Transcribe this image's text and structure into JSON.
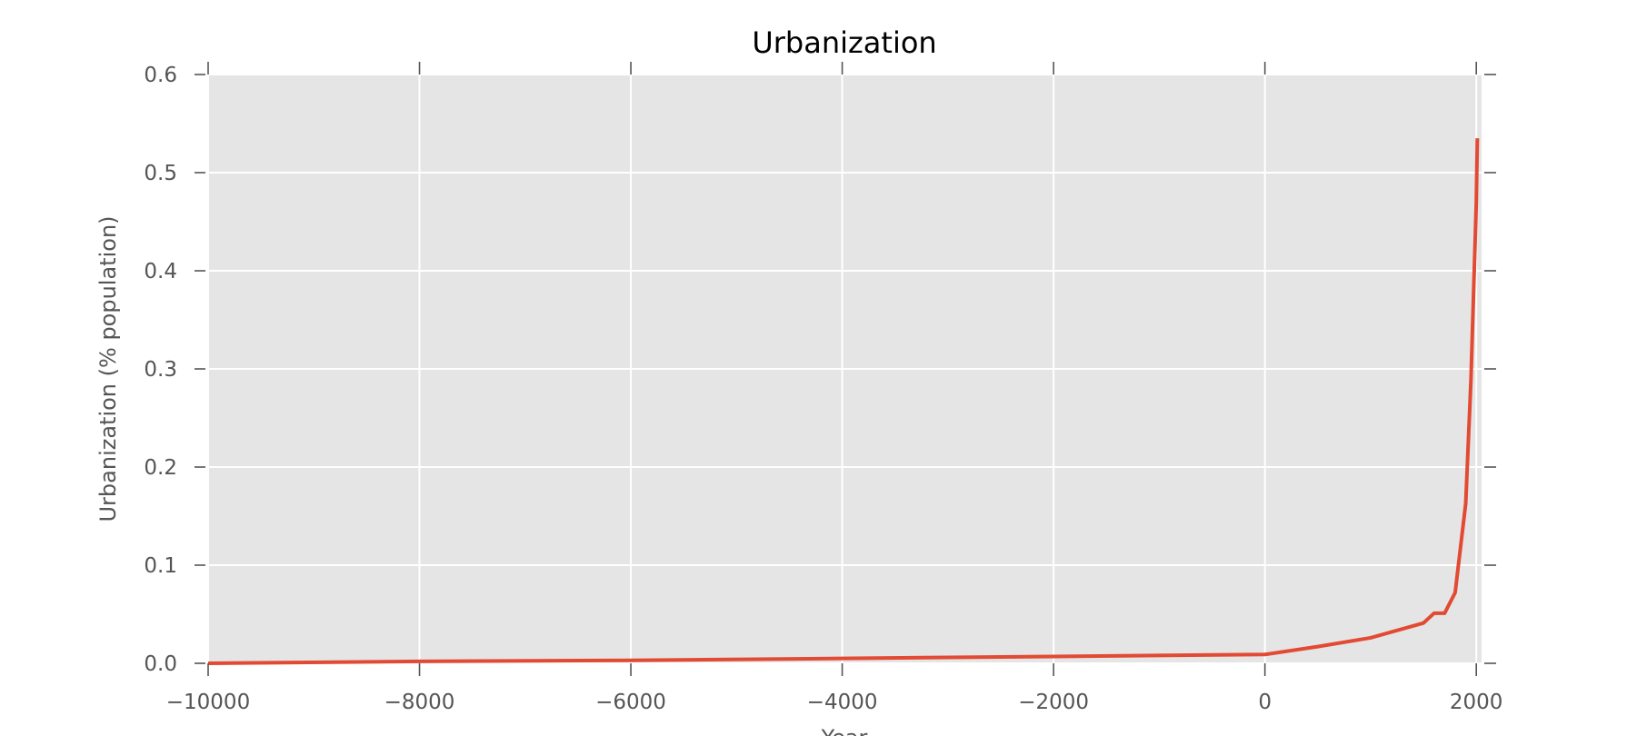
{
  "chart_data": {
    "type": "line",
    "title": "Urbanization",
    "xlabel": "Year",
    "ylabel": "Urbanization (% population)",
    "xlim": [
      -10000,
      2050
    ],
    "ylim": [
      0,
      0.6
    ],
    "xticks": [
      -10000,
      -8000,
      -6000,
      -4000,
      -2000,
      0,
      2000
    ],
    "xtick_labels": [
      "−10000",
      "−8000",
      "−6000",
      "−4000",
      "−2000",
      "0",
      "2000"
    ],
    "yticks": [
      0.0,
      0.1,
      0.2,
      0.3,
      0.4,
      0.5,
      0.6
    ],
    "ytick_labels": [
      "0.0",
      "0.1",
      "0.2",
      "0.3",
      "0.4",
      "0.5",
      "0.6"
    ],
    "grid": true,
    "series": [
      {
        "color": "#e24a33",
        "x": [
          -10000,
          -8000,
          -6000,
          -4000,
          -2000,
          0,
          500,
          1000,
          1500,
          1600,
          1700,
          1800,
          1900,
          1950,
          2000,
          2010
        ],
        "y": [
          0.0,
          0.002,
          0.003,
          0.005,
          0.007,
          0.009,
          0.017,
          0.026,
          0.041,
          0.051,
          0.051,
          0.072,
          0.163,
          0.29,
          0.47,
          0.535
        ]
      }
    ]
  },
  "colors": {
    "plot_background": "#e5e5e5",
    "grid": "#ffffff",
    "line": "#e24a33",
    "tick": "#555555"
  }
}
